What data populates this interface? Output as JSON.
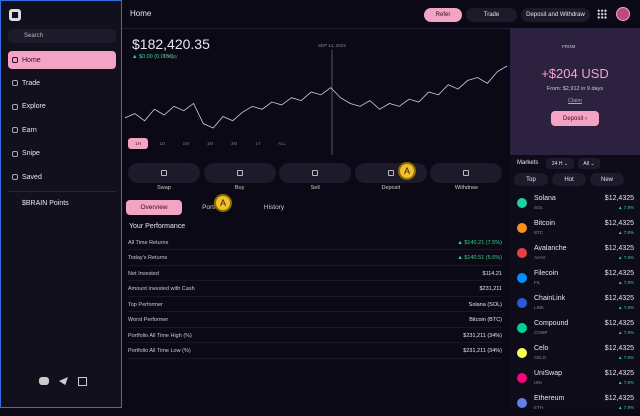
{
  "app": {
    "search": "Search",
    "nav": [
      "Home",
      "Trade",
      "Explore",
      "Earn",
      "Snipe",
      "Saved"
    ],
    "points": "$BRAIN Points"
  },
  "header": {
    "title": "Home",
    "buttons": [
      "Refer",
      "Trade",
      "Deposit and Withdraw"
    ]
  },
  "balance": {
    "amount": "$182,420.35",
    "change": "▲ $0.00 (0.00%)",
    "period": "Today",
    "tooltip": "SEP 14, 2023",
    "line": [
      52,
      55,
      50,
      58,
      54,
      60,
      57,
      62,
      48,
      45,
      53,
      50,
      56,
      60,
      58,
      63,
      61,
      66,
      64,
      70,
      68,
      73,
      66,
      62,
      60,
      64,
      58,
      62,
      60,
      65,
      63,
      70,
      68,
      75,
      72,
      78,
      80,
      76,
      84,
      88
    ],
    "ranges": [
      "1H",
      "1D",
      "1W",
      "1M",
      "3M",
      "1Y",
      "ALL"
    ]
  },
  "promo": {
    "badge": "FROM",
    "amount": "+$204 USD",
    "detail": "From: $2,912 in 9 days",
    "claim": "Claim",
    "button": "Deposit ›"
  },
  "actions": [
    "Swap",
    "Buy",
    "Sell",
    "Deposit",
    "Withdraw"
  ],
  "markers": [
    "A",
    "A"
  ],
  "tabs": [
    "Overview",
    "Portfolio",
    "History"
  ],
  "performance": {
    "title": "Your Performance",
    "rows": [
      [
        "All Time Returns",
        "▲ $140.21 (7.5%)"
      ],
      [
        "Today's Returns",
        "▲ $140.51 (5.6%)"
      ],
      [
        "Net Invested",
        "$114.21"
      ],
      [
        "Amount invested with Cash",
        "$231,211"
      ],
      [
        "Top Performer",
        "Solana (SOL)"
      ],
      [
        "Worst Performer",
        "Bitcoin (BTC)"
      ],
      [
        "Portfolio All Time High (%)",
        "$231,211 (34%)"
      ],
      [
        "Portfolio All Time Low (%)",
        "$231,211 (34%)"
      ]
    ]
  },
  "markets": {
    "title": "Markets",
    "period": "24 H ⌄",
    "filter": "All ⌄",
    "chips": [
      "Top",
      "Hot",
      "New"
    ],
    "coins": [
      {
        "name": "Solana",
        "symbol": "SOL",
        "price": "$12,4325",
        "change": "▲ 7.8%",
        "color": "#1fd1a0"
      },
      {
        "name": "Bitcoin",
        "symbol": "BTC",
        "price": "$12,4325",
        "change": "▲ 7.8%",
        "color": "#f7931a"
      },
      {
        "name": "Avalanche",
        "symbol": "AVAX",
        "price": "$12,4325",
        "change": "▲ 7.8%",
        "color": "#e84142"
      },
      {
        "name": "Filecoin",
        "symbol": "FIL",
        "price": "$12,4325",
        "change": "▲ 7.8%",
        "color": "#0090ff"
      },
      {
        "name": "ChainLink",
        "symbol": "LINK",
        "price": "$12,4325",
        "change": "▲ 7.8%",
        "color": "#2a5ada"
      },
      {
        "name": "Compound",
        "symbol": "COMP",
        "price": "$12,4325",
        "change": "▲ 7.8%",
        "color": "#00d395"
      },
      {
        "name": "Celo",
        "symbol": "CELO",
        "price": "$12,4325",
        "change": "▲ 7.8%",
        "color": "#fcff52"
      },
      {
        "name": "UniSwap",
        "symbol": "UNI",
        "price": "$12,4325",
        "change": "▲ 7.8%",
        "color": "#ff007a"
      },
      {
        "name": "Ethereum",
        "symbol": "ETH",
        "price": "$12,4325",
        "change": "▲ 7.8%",
        "color": "#627eea"
      }
    ]
  }
}
